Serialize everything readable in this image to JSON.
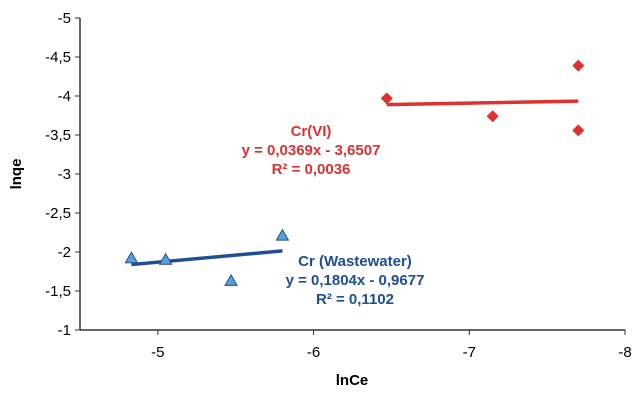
{
  "chart_data": {
    "type": "scatter",
    "xlabel": "lnCe",
    "ylabel": "lnqe",
    "xlim": [
      -4.5,
      -8
    ],
    "ylim": [
      -1,
      -5
    ],
    "x_ticks": [
      "-5",
      "-6",
      "-7",
      "-8"
    ],
    "y_ticks": [
      "-1",
      "-1,5",
      "-2",
      "-2,5",
      "-3",
      "-3,5",
      "-4",
      "-4,5",
      "-5"
    ],
    "grid": false,
    "series": [
      {
        "name": "Cr(VI)",
        "marker": "diamond",
        "color": "#e03030",
        "points": [
          {
            "x": -6.47,
            "y": -3.97
          },
          {
            "x": -7.15,
            "y": -3.74
          },
          {
            "x": -7.7,
            "y": -4.39
          },
          {
            "x": -7.7,
            "y": -3.56
          }
        ],
        "trendline": {
          "x_start": -6.47,
          "x_end": -7.7
        },
        "equation": "y = 0,0369x - 3,6507",
        "r2": "R² = 0,0036"
      },
      {
        "name": "Cr (Wastewater)",
        "marker": "triangle",
        "color": "#5aa0d8",
        "line_color": "#1f4e96",
        "points": [
          {
            "x": -4.83,
            "y": -1.92
          },
          {
            "x": -5.05,
            "y": -1.9
          },
          {
            "x": -5.47,
            "y": -1.63
          },
          {
            "x": -5.8,
            "y": -2.21
          }
        ],
        "trendline": {
          "x_start": -4.83,
          "x_end": -5.8
        },
        "equation": "y = 0,1804x - 0,9677",
        "r2": "R² = 0,1102"
      }
    ]
  }
}
